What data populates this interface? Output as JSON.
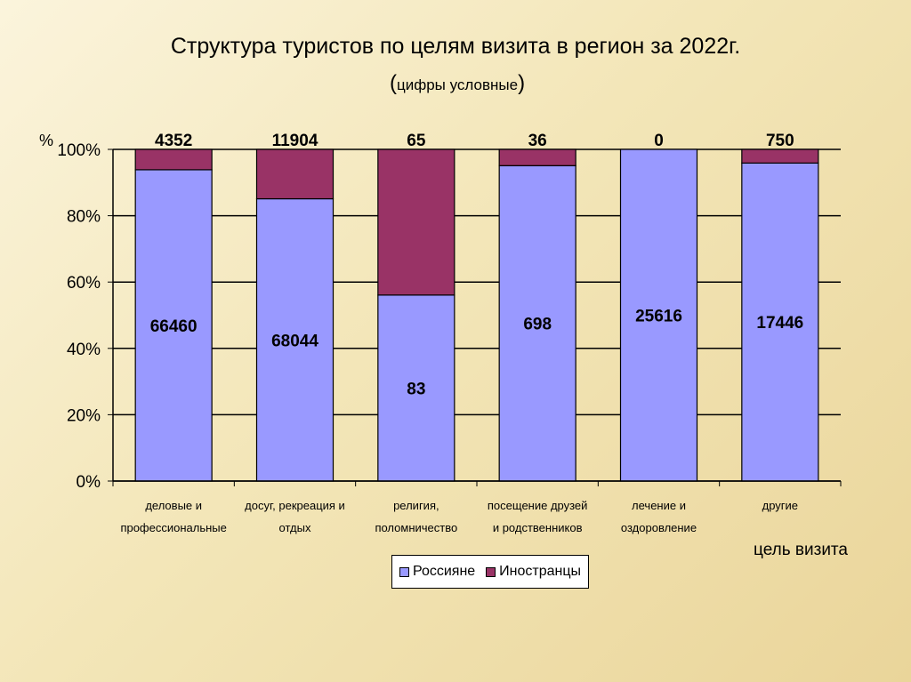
{
  "title": "Структура туристов по целям визита в регион за 2022г.",
  "subtitle_text": "цифры условные",
  "subtitle_open": "(",
  "subtitle_close": ")",
  "chart_data": {
    "type": "bar",
    "stacked": "percent",
    "categories": [
      [
        "деловые и",
        "профессиональные"
      ],
      [
        "досуг, рекреация и",
        "отдых"
      ],
      [
        "религия,",
        "поломничество"
      ],
      [
        "посещение друзей",
        "и родственников"
      ],
      [
        "лечение и",
        "оздоровление"
      ],
      [
        "другие"
      ]
    ],
    "series": [
      {
        "name": "Россияне",
        "color": "#9999ff",
        "values": [
          66460,
          68044,
          83,
          698,
          25616,
          17446
        ]
      },
      {
        "name": "Иностранцы",
        "color": "#993366",
        "values": [
          4352,
          11904,
          65,
          36,
          0,
          750
        ]
      }
    ],
    "y_unit": "%",
    "y_ticks": [
      "0%",
      "20%",
      "40%",
      "60%",
      "80%",
      "100%"
    ],
    "ylim": [
      0,
      100
    ],
    "xlabel": "цель визита",
    "grid": true,
    "legend_position": "bottom"
  }
}
